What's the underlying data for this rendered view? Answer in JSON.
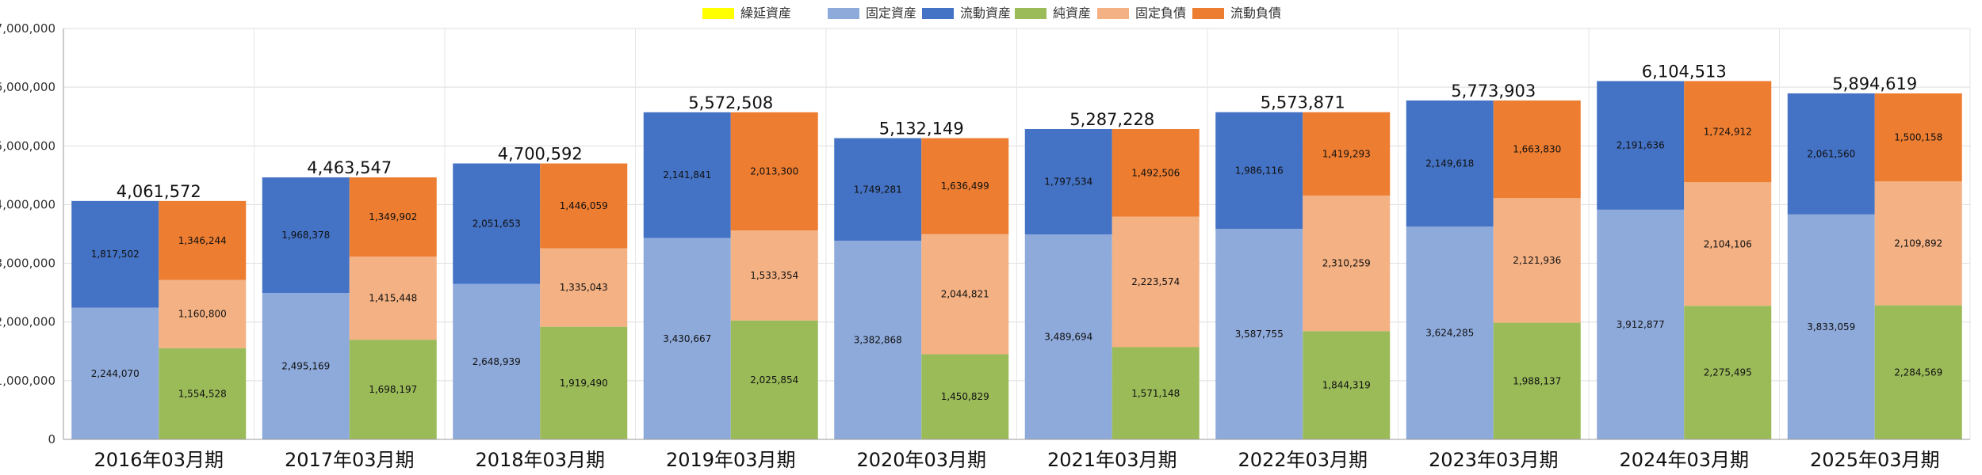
{
  "chart_data": {
    "type": "bar",
    "subtype": "stacked-paired",
    "categories": [
      "2016年03月期",
      "2017年03月期",
      "2018年03月期",
      "2019年03月期",
      "2020年03月期",
      "2021年03月期",
      "2022年03月期",
      "2023年03月期",
      "2024年03月期",
      "2025年03月期"
    ],
    "ylim": [
      0,
      7000000
    ],
    "yticks": [
      0,
      1000000,
      2000000,
      3000000,
      4000000,
      5000000,
      6000000,
      7000000
    ],
    "ytick_labels": [
      "0",
      "1,000,000",
      "2,000,000",
      "3,000,000",
      "4,000,000",
      "5,000,000",
      "6,000,000",
      "7,000,000"
    ],
    "legend_position": "top-center",
    "grid": true,
    "legend": [
      {
        "name": "繰延資産",
        "color": "#ffff00"
      },
      {
        "name": "固定資産",
        "color": "#8eaadb"
      },
      {
        "name": "流動資産",
        "color": "#4472c4"
      },
      {
        "name": "純資産",
        "color": "#9bbb59"
      },
      {
        "name": "固定負債",
        "color": "#f4b183"
      },
      {
        "name": "流動負債",
        "color": "#ed7d31"
      }
    ],
    "totals": [
      4061572,
      4463547,
      4700592,
      5572508,
      5132149,
      5287228,
      5573871,
      5773903,
      6104513,
      5894619
    ],
    "total_labels": [
      "4,061,572",
      "4,463,547",
      "4,700,592",
      "5,572,508",
      "5,132,149",
      "5,287,228",
      "5,573,871",
      "5,773,903",
      "6,104,513",
      "5,894,619"
    ],
    "stacks": [
      {
        "side": "assets",
        "series": [
          {
            "name": "繰延資産",
            "color": "#ffff00",
            "values": [
              0,
              0,
              0,
              0,
              0,
              0,
              0,
              0,
              0,
              0
            ],
            "labels": [
              "",
              "",
              "",
              "",
              "",
              "",
              "",
              "",
              "",
              ""
            ]
          },
          {
            "name": "固定資産",
            "color": "#8eaadb",
            "values": [
              2244070,
              2495169,
              2648939,
              3430667,
              3382868,
              3489694,
              3587755,
              3624285,
              3912877,
              3833059
            ],
            "labels": [
              "2,244,070",
              "2,495,169",
              "2,648,939",
              "3,430,667",
              "3,382,868",
              "3,489,694",
              "3,587,755",
              "3,624,285",
              "3,912,877",
              "3,833,059"
            ]
          },
          {
            "name": "流動資産",
            "color": "#4472c4",
            "values": [
              1817502,
              1968378,
              2051653,
              2141841,
              1749281,
              1797534,
              1986116,
              2149618,
              2191636,
              2061560
            ],
            "labels": [
              "1,817,502",
              "1,968,378",
              "2,051,653",
              "2,141,841",
              "1,749,281",
              "1,797,534",
              "1,986,116",
              "2,149,618",
              "2,191,636",
              "2,061,560"
            ]
          }
        ]
      },
      {
        "side": "liabilities",
        "series": [
          {
            "name": "純資産",
            "color": "#9bbb59",
            "values": [
              1554528,
              1698197,
              1919490,
              2025854,
              1450829,
              1571148,
              1844319,
              1988137,
              2275495,
              2284569
            ],
            "labels": [
              "1,554,528",
              "1,698,197",
              "1,919,490",
              "2,025,854",
              "1,450,829",
              "1,571,148",
              "1,844,319",
              "1,988,137",
              "2,275,495",
              "2,284,569"
            ]
          },
          {
            "name": "固定負債",
            "color": "#f4b183",
            "values": [
              1160800,
              1415448,
              1335043,
              1533354,
              2044821,
              2223574,
              2310259,
              2121936,
              2104106,
              2109892
            ],
            "labels": [
              "1,160,800",
              "1,415,448",
              "1,335,043",
              "1,533,354",
              "2,044,821",
              "2,223,574",
              "2,310,259",
              "2,121,936",
              "2,104,106",
              "2,109,892"
            ]
          },
          {
            "name": "流動負債",
            "color": "#ed7d31",
            "values": [
              1346244,
              1349902,
              1446059,
              2013300,
              1636499,
              1492506,
              1419293,
              1663830,
              1724912,
              1500158
            ],
            "labels": [
              "1,346,244",
              "1,349,902",
              "1,446,059",
              "2,013,300",
              "1,636,499",
              "1,492,506",
              "1,419,293",
              "1,663,830",
              "1,724,912",
              "1,500,158"
            ]
          }
        ]
      }
    ]
  }
}
